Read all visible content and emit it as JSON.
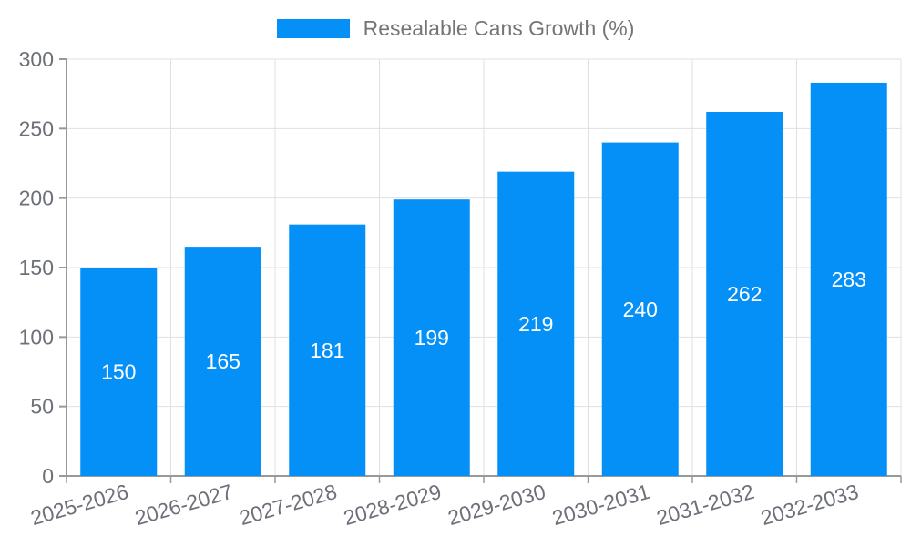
{
  "chart_data": {
    "type": "bar",
    "title": "",
    "xlabel": "",
    "ylabel": "",
    "categories": [
      "2025-2026",
      "2026-2027",
      "2027-2028",
      "2028-2029",
      "2029-2030",
      "2030-2031",
      "2031-2032",
      "2032-2033"
    ],
    "series": [
      {
        "name": "Resealable Cans Growth (%)",
        "values": [
          150,
          165,
          181,
          199,
          219,
          240,
          262,
          283
        ],
        "color": "#0590f8"
      }
    ],
    "ylim": [
      0,
      300
    ],
    "yticks": [
      0,
      50,
      100,
      150,
      200,
      250,
      300
    ],
    "grid": true,
    "legend_position": "top-center",
    "bar_labels_visible": true,
    "bar_label_color": "#ffffff",
    "x_label_rotation_deg": -16,
    "colors": {
      "axis": "#999999",
      "grid": "#e0e0e0",
      "tick_label": "#6e7079",
      "legend_text": "#757575",
      "background": "#ffffff"
    }
  }
}
